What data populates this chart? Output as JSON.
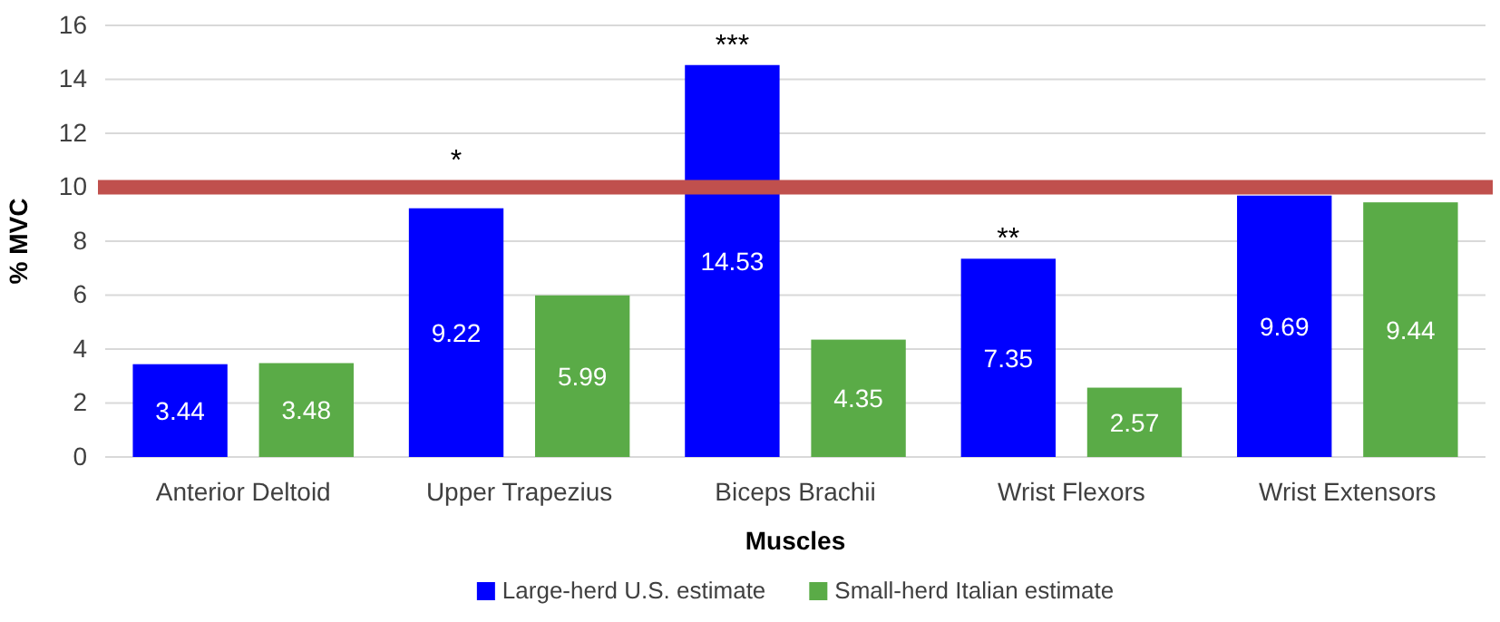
{
  "chart_data": {
    "type": "bar",
    "xlabel": "Muscles",
    "ylabel": "% MVC",
    "categories": [
      "Anterior Deltoid",
      "Upper Trapezius",
      "Biceps Brachii",
      "Wrist Flexors",
      "Wrist Extensors"
    ],
    "series": [
      {
        "name": "Large-herd U.S. estimate",
        "color": "#0000ff",
        "values": [
          3.44,
          9.22,
          14.53,
          7.35,
          9.69
        ]
      },
      {
        "name": "Small-herd Italian estimate",
        "color": "#5aab47",
        "values": [
          3.48,
          5.99,
          4.35,
          2.57,
          9.44
        ]
      }
    ],
    "ylim": [
      0,
      16
    ],
    "yticks": [
      0,
      2,
      4,
      6,
      8,
      10,
      12,
      14,
      16
    ],
    "grid": "y",
    "legend": "bottom",
    "data_labels": true,
    "ref_lines": [
      {
        "axis": "y",
        "value": 10,
        "color": "#c0504d"
      }
    ],
    "annotations": [
      "*",
      "***",
      "**"
    ]
  }
}
